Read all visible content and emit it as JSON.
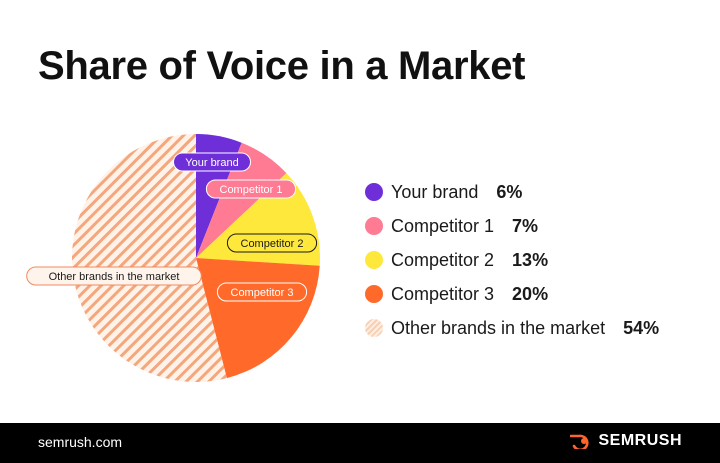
{
  "title": "Share of Voice in a Market",
  "chart_data": {
    "type": "pie",
    "slices": [
      {
        "label": "Your brand",
        "value": 6,
        "pct_label": "6%",
        "color": "#6e2fd9",
        "hatched": false
      },
      {
        "label": "Competitor 1",
        "value": 7,
        "pct_label": "7%",
        "color": "#ff7a93",
        "hatched": false
      },
      {
        "label": "Competitor 2",
        "value": 13,
        "pct_label": "13%",
        "color": "#ffe83c",
        "hatched": false
      },
      {
        "label": "Competitor 3",
        "value": 20,
        "pct_label": "20%",
        "color": "#ff6a2b",
        "hatched": false
      },
      {
        "label": "Other brands in the market",
        "value": 54,
        "pct_label": "54%",
        "color": "#f6d0b6",
        "hatched": true
      }
    ],
    "legend_position": "right"
  },
  "footer": {
    "site": "semrush.com",
    "brand": "SEMRUSH",
    "logo_icon": "semrush-flame-icon",
    "logo_color": "#ff642d"
  }
}
